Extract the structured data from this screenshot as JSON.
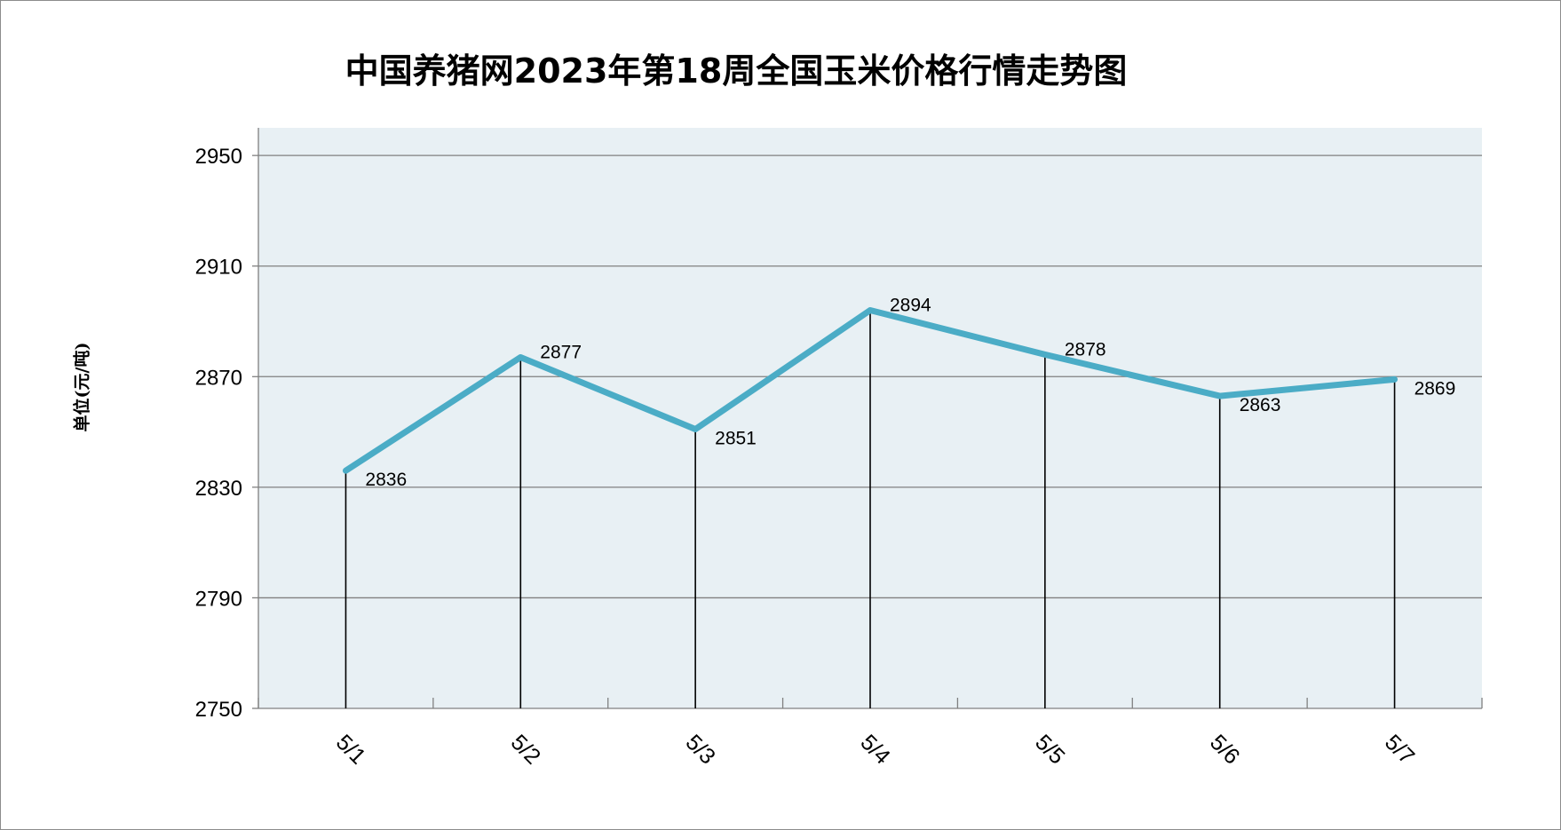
{
  "chart_data": {
    "type": "line",
    "title": "中国养猪网2023年第18周全国玉米价格行情走势图",
    "ylabel": "单位(元/吨)",
    "xlabel": "",
    "categories": [
      "5/1",
      "5/2",
      "5/3",
      "5/4",
      "5/5",
      "5/6",
      "5/7"
    ],
    "series": [
      {
        "values": [
          2836,
          2877,
          2851,
          2894,
          2878,
          2863,
          2869
        ]
      }
    ],
    "data_labels": [
      "2836",
      "2877",
      "2851",
      "2894",
      "2878",
      "2863",
      "2869"
    ],
    "ylim": [
      2750,
      2960
    ],
    "yticks": [
      2750,
      2790,
      2830,
      2870,
      2910,
      2950
    ],
    "ytick_labels": [
      "2750",
      "2790",
      "2830",
      "2870",
      "2910",
      "2950"
    ],
    "grid": true,
    "drop_lines": true,
    "legend": "none"
  },
  "colors": {
    "line": "#4bacc6",
    "plot_background": "#e8f0f4",
    "gridline": "#808080",
    "drop_line": "#000000",
    "axis": "#808080"
  }
}
